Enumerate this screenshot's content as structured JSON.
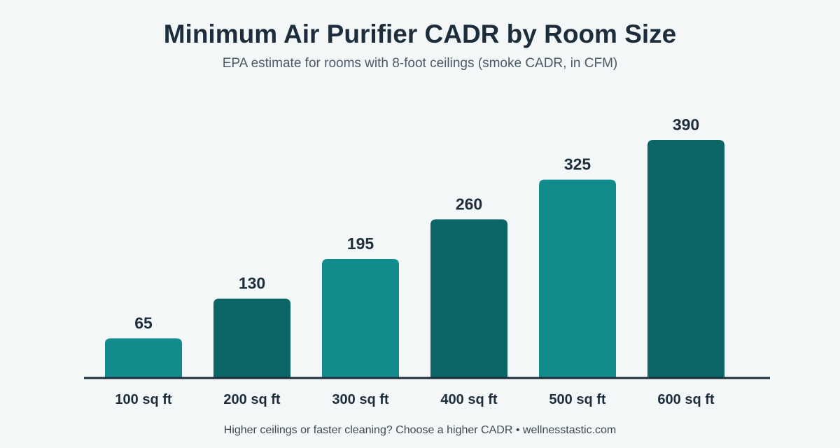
{
  "chart_data": {
    "type": "bar",
    "title": "Minimum Air Purifier CADR by Room Size",
    "subtitle": "EPA estimate for rooms with 8-foot ceilings (smoke CADR, in CFM)",
    "categories": [
      "100 sq ft",
      "200 sq ft",
      "300 sq ft",
      "400 sq ft",
      "500 sq ft",
      "600 sq ft"
    ],
    "values": [
      65,
      130,
      195,
      260,
      325,
      390
    ],
    "value_labels": [
      "65",
      "130",
      "195",
      "260",
      "325",
      "390"
    ],
    "ylim": [
      0,
      390
    ],
    "grid": false,
    "data_labels": true,
    "colors": [
      "#128b8c",
      "#0c6565",
      "#128b8c",
      "#0c6565",
      "#128b8c",
      "#0c6565"
    ],
    "axis_color": "#1d2d3b"
  },
  "footer": "Higher ceilings or faster cleaning? Choose a higher CADR • wellnesstastic.com"
}
